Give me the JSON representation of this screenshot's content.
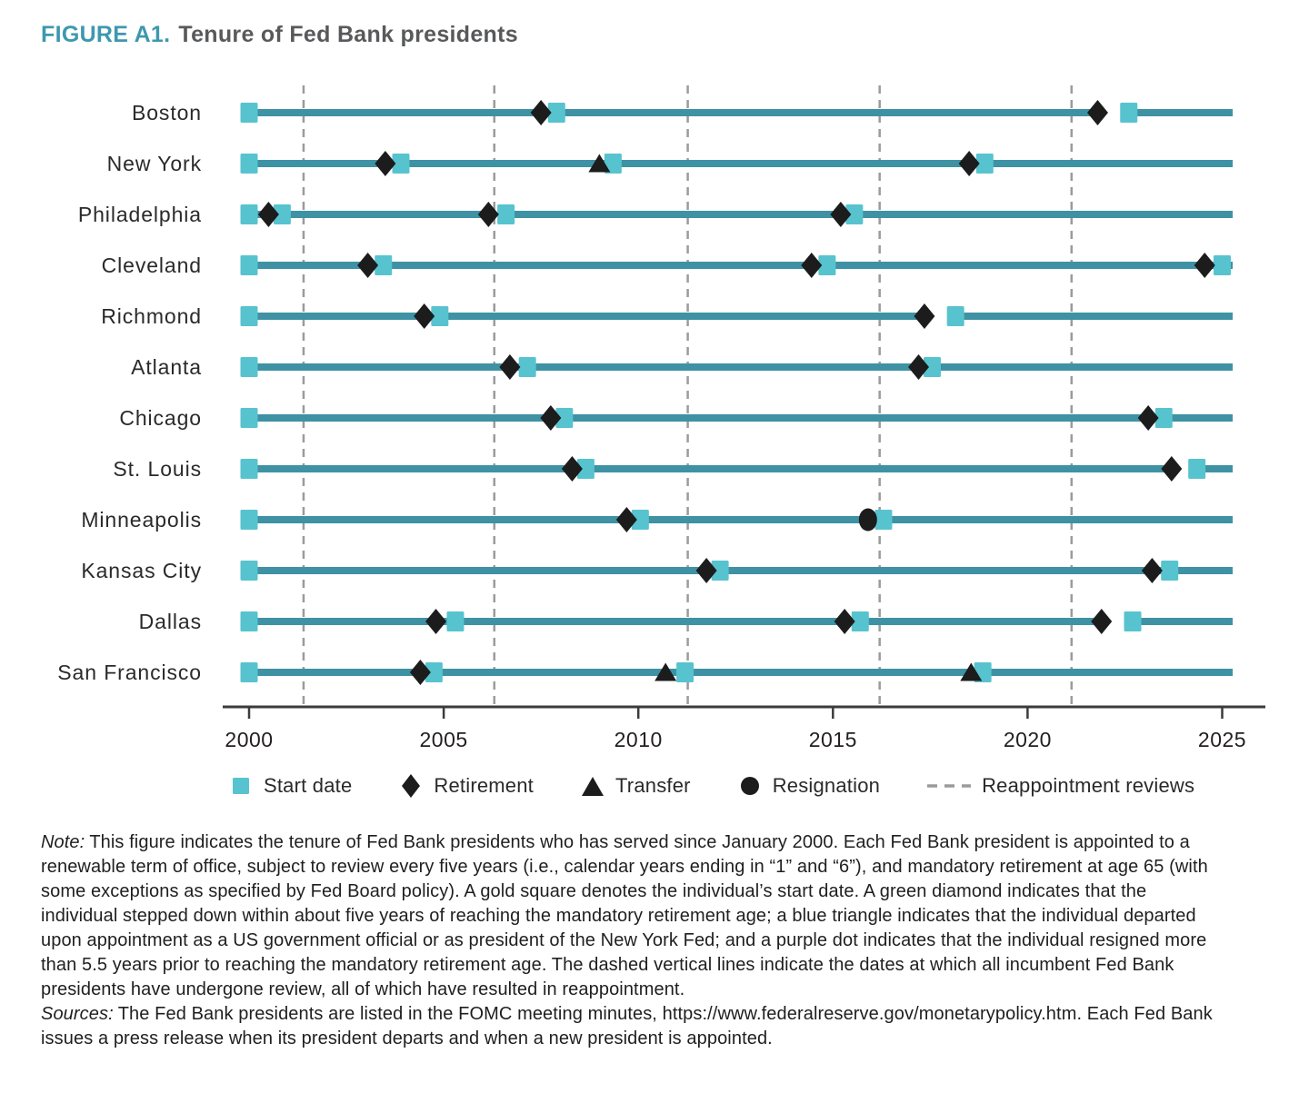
{
  "title": {
    "prefix": "FIGURE A1.",
    "text": "Tenure of Fed Bank presidents"
  },
  "colors": {
    "line": "#3E92A4",
    "marker": "#57C3CF",
    "black": "#1C1C1C",
    "dash": "#9B9B9B",
    "axis": "#3B3B3B",
    "title_prefix": "#3D98AF",
    "title_text": "#58595B",
    "text": "#231F20"
  },
  "chart_data": {
    "type": "timeline",
    "title": "Tenure of Fed Bank presidents",
    "x_axis": {
      "min": 2000,
      "max": 2025,
      "ticks": [
        2000,
        2005,
        2010,
        2015,
        2020,
        2025
      ],
      "line_start": 1999.9,
      "line_end": 2025.27
    },
    "reappointment_reviews": [
      2001.4,
      2006.3,
      2011.27,
      2016.2,
      2021.13
    ],
    "rows": [
      {
        "label": "Boston",
        "markers": [
          {
            "type": "start",
            "year": 2000
          },
          {
            "type": "retirement",
            "year": 2007.5
          },
          {
            "type": "start",
            "year": 2007.9
          },
          {
            "type": "retirement",
            "year": 2021.8
          },
          {
            "type": "start",
            "year": 2022.6
          }
        ],
        "gaps": [
          [
            2021.97,
            2022.42
          ]
        ]
      },
      {
        "label": "New York",
        "markers": [
          {
            "type": "start",
            "year": 2000
          },
          {
            "type": "retirement",
            "year": 2003.5
          },
          {
            "type": "start",
            "year": 2003.9
          },
          {
            "type": "transfer",
            "year": 2009.0
          },
          {
            "type": "start",
            "year": 2009.35
          },
          {
            "type": "retirement",
            "year": 2018.5
          },
          {
            "type": "start",
            "year": 2018.9
          }
        ],
        "gaps": []
      },
      {
        "label": "Philadelphia",
        "markers": [
          {
            "type": "start",
            "year": 2000
          },
          {
            "type": "retirement",
            "year": 2000.5
          },
          {
            "type": "start",
            "year": 2000.85
          },
          {
            "type": "retirement",
            "year": 2006.15
          },
          {
            "type": "start",
            "year": 2006.6
          },
          {
            "type": "retirement",
            "year": 2015.2
          },
          {
            "type": "start",
            "year": 2015.55
          }
        ],
        "gaps": [
          [
            2006.3,
            2006.44
          ]
        ]
      },
      {
        "label": "Cleveland",
        "markers": [
          {
            "type": "start",
            "year": 2000
          },
          {
            "type": "retirement",
            "year": 2003.05
          },
          {
            "type": "start",
            "year": 2003.45
          },
          {
            "type": "retirement",
            "year": 2014.45
          },
          {
            "type": "start",
            "year": 2014.85
          },
          {
            "type": "retirement",
            "year": 2024.55
          },
          {
            "type": "start",
            "year": 2025.0
          }
        ],
        "gaps": []
      },
      {
        "label": "Richmond",
        "markers": [
          {
            "type": "start",
            "year": 2000
          },
          {
            "type": "retirement",
            "year": 2004.5
          },
          {
            "type": "start",
            "year": 2004.9
          },
          {
            "type": "retirement",
            "year": 2017.35
          },
          {
            "type": "start",
            "year": 2018.15
          }
        ],
        "gaps": [
          [
            2017.5,
            2017.98
          ]
        ]
      },
      {
        "label": "Atlanta",
        "markers": [
          {
            "type": "start",
            "year": 2000
          },
          {
            "type": "retirement",
            "year": 2006.7
          },
          {
            "type": "start",
            "year": 2007.15
          },
          {
            "type": "retirement",
            "year": 2017.2
          },
          {
            "type": "start",
            "year": 2017.55
          }
        ],
        "gaps": []
      },
      {
        "label": "Chicago",
        "markers": [
          {
            "type": "start",
            "year": 2000
          },
          {
            "type": "retirement",
            "year": 2007.75
          },
          {
            "type": "start",
            "year": 2008.1
          },
          {
            "type": "retirement",
            "year": 2023.1
          },
          {
            "type": "start",
            "year": 2023.5
          }
        ],
        "gaps": []
      },
      {
        "label": "St. Louis",
        "markers": [
          {
            "type": "start",
            "year": 2000
          },
          {
            "type": "retirement",
            "year": 2008.3
          },
          {
            "type": "start",
            "year": 2008.65
          },
          {
            "type": "retirement",
            "year": 2023.7
          },
          {
            "type": "start",
            "year": 2024.35
          }
        ],
        "gaps": [
          [
            2023.86,
            2024.18
          ]
        ]
      },
      {
        "label": "Minneapolis",
        "markers": [
          {
            "type": "start",
            "year": 2000
          },
          {
            "type": "retirement",
            "year": 2009.7
          },
          {
            "type": "start",
            "year": 2010.05
          },
          {
            "type": "resignation",
            "year": 2015.9
          },
          {
            "type": "start",
            "year": 2016.3
          }
        ],
        "gaps": []
      },
      {
        "label": "Kansas City",
        "markers": [
          {
            "type": "start",
            "year": 2000
          },
          {
            "type": "retirement",
            "year": 2011.75
          },
          {
            "type": "start",
            "year": 2012.1
          },
          {
            "type": "retirement",
            "year": 2023.2
          },
          {
            "type": "start",
            "year": 2023.65
          }
        ],
        "gaps": []
      },
      {
        "label": "Dallas",
        "markers": [
          {
            "type": "start",
            "year": 2000
          },
          {
            "type": "retirement",
            "year": 2004.8
          },
          {
            "type": "start",
            "year": 2005.3
          },
          {
            "type": "retirement",
            "year": 2015.3
          },
          {
            "type": "start",
            "year": 2015.7
          },
          {
            "type": "retirement",
            "year": 2021.9
          },
          {
            "type": "start",
            "year": 2022.7
          }
        ],
        "gaps": [
          [
            2022.06,
            2022.48
          ]
        ]
      },
      {
        "label": "San Francisco",
        "markers": [
          {
            "type": "start",
            "year": 2000
          },
          {
            "type": "retirement",
            "year": 2004.4
          },
          {
            "type": "start",
            "year": 2004.75
          },
          {
            "type": "transfer",
            "year": 2010.7
          },
          {
            "type": "start",
            "year": 2011.2
          },
          {
            "type": "transfer",
            "year": 2018.55
          },
          {
            "type": "start",
            "year": 2018.85
          }
        ],
        "gaps": []
      }
    ]
  },
  "legend": [
    {
      "icon": "start-square-icon",
      "marker": "start",
      "label": "Start date"
    },
    {
      "icon": "retirement-diamond-icon",
      "marker": "retirement",
      "label": "Retirement"
    },
    {
      "icon": "transfer-triangle-icon",
      "marker": "transfer",
      "label": "Transfer"
    },
    {
      "icon": "resignation-dot-icon",
      "marker": "resignation",
      "label": "Resignation"
    },
    {
      "icon": "reappointment-dash-icon",
      "marker": "dash",
      "label": "Reappointment reviews"
    }
  ],
  "note": {
    "note_label": "Note:",
    "note_text": "This figure indicates the tenure of Fed Bank presidents who has served since January 2000. Each Fed Bank president is appointed to a renewable term of office, subject to review every five years (i.e., calendar years ending in “1” and “6”), and mandatory retirement at age 65 (with some exceptions as specified by Fed Board policy). A gold square denotes the individual’s start date. A green diamond indicates that the individual stepped down within about five years of reaching the mandatory retirement age; a blue triangle indicates that the individual departed upon appointment as a US government official or as president of the New York Fed; and a purple dot indicates that the individual resigned more than 5.5 years prior to reaching the mandatory retirement age. The dashed vertical lines indicate the dates at which all incumbent Fed Bank presidents have undergone review, all of which have resulted in reappointment.",
    "sources_label": "Sources:",
    "sources_text": "The Fed Bank presidents are listed in the FOMC meeting minutes, https://www.federalreserve.gov/monetarypolicy.htm. Each Fed Bank issues a press release when its president departs and when a new president is appointed."
  }
}
